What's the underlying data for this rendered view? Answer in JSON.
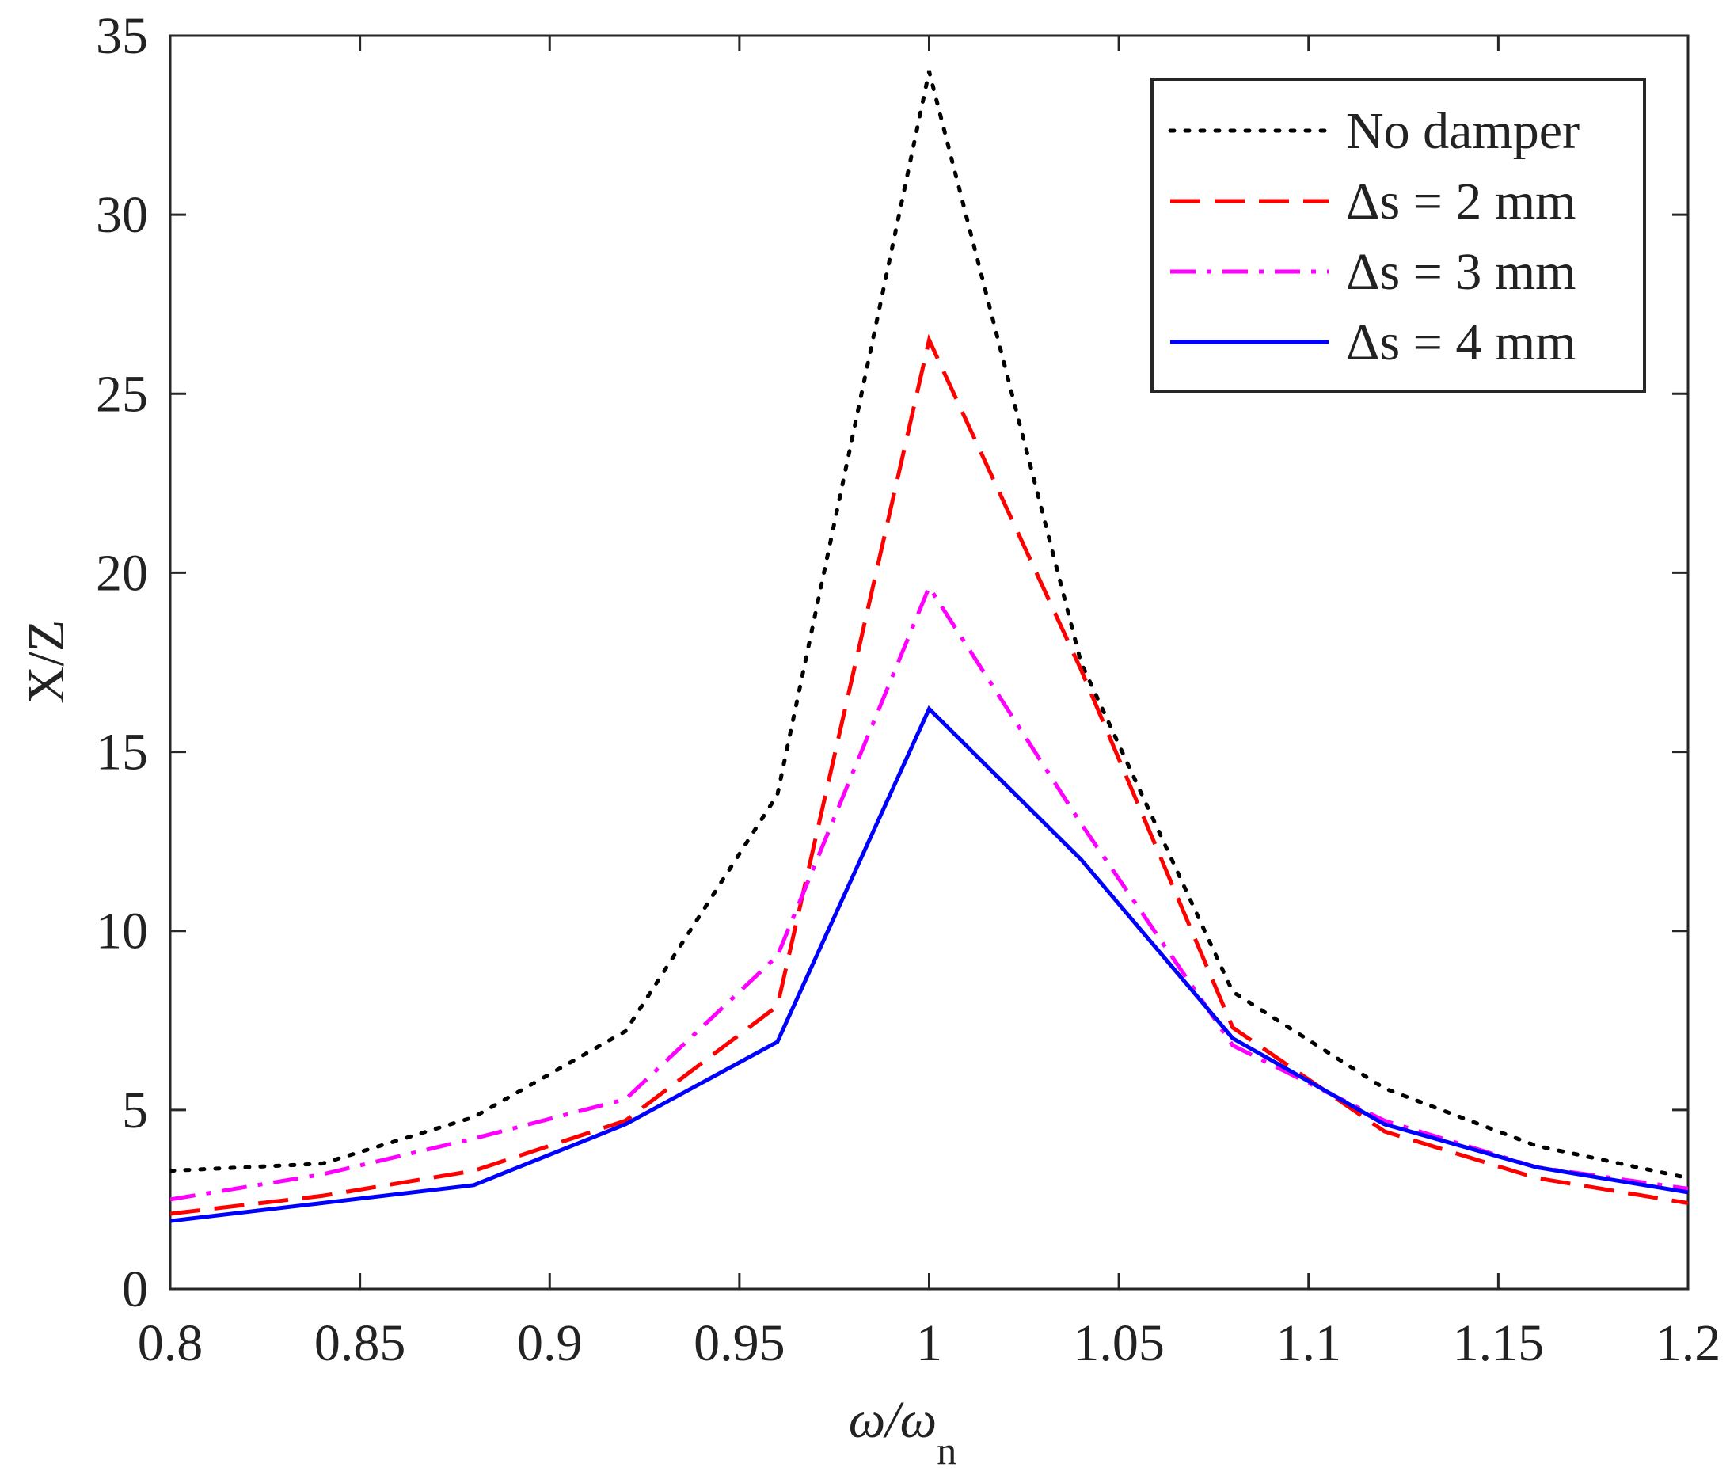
{
  "chart_data": {
    "type": "line",
    "title": "",
    "xlabel": "ω/ω",
    "xlabel_subscript": "n",
    "ylabel": "X/Z",
    "xlim": [
      0.8,
      1.2
    ],
    "ylim": [
      0,
      35
    ],
    "grid": false,
    "legend_position": "top-right",
    "xticks": [
      0.8,
      0.85,
      0.9,
      0.95,
      1,
      1.05,
      1.1,
      1.15,
      1.2
    ],
    "xtick_labels": [
      "0.8",
      "0.85",
      "0.9",
      "0.95",
      "1",
      "1.05",
      "1.1",
      "1.15",
      "1.2"
    ],
    "yticks": [
      0,
      5,
      10,
      15,
      20,
      25,
      30,
      35
    ],
    "ytick_labels": [
      "0",
      "5",
      "10",
      "15",
      "20",
      "25",
      "30",
      "35"
    ],
    "series": [
      {
        "name": "No damper",
        "color": "#000000",
        "style": "dotted",
        "x": [
          0.8,
          0.84,
          0.88,
          0.92,
          0.96,
          1.0,
          1.04,
          1.08,
          1.12,
          1.16,
          1.2
        ],
        "values": [
          3.3,
          3.5,
          4.8,
          7.2,
          13.8,
          34.0,
          17.5,
          8.3,
          5.6,
          4.0,
          3.1
        ]
      },
      {
        "name": "Δs = 2 mm",
        "color": "#ff0000",
        "style": "dashed",
        "x": [
          0.8,
          0.84,
          0.88,
          0.92,
          0.96,
          1.0,
          1.04,
          1.08,
          1.12,
          1.16,
          1.2
        ],
        "values": [
          2.1,
          2.6,
          3.3,
          4.7,
          7.9,
          26.5,
          17.3,
          7.3,
          4.4,
          3.1,
          2.4
        ]
      },
      {
        "name": "Δs = 3 mm",
        "color": "#ff00ff",
        "style": "dashdot",
        "x": [
          0.8,
          0.84,
          0.88,
          0.92,
          0.96,
          1.0,
          1.04,
          1.08,
          1.12,
          1.16,
          1.2
        ],
        "values": [
          2.5,
          3.2,
          4.2,
          5.3,
          9.3,
          19.6,
          13.0,
          6.8,
          4.7,
          3.4,
          2.8
        ]
      },
      {
        "name": "Δs = 4 mm",
        "color": "#0000ff",
        "style": "solid",
        "x": [
          0.8,
          0.84,
          0.88,
          0.92,
          0.96,
          1.0,
          1.04,
          1.08,
          1.12,
          1.16,
          1.2
        ],
        "values": [
          1.9,
          2.4,
          2.9,
          4.6,
          6.9,
          16.2,
          12.0,
          7.0,
          4.6,
          3.4,
          2.7
        ]
      }
    ]
  }
}
